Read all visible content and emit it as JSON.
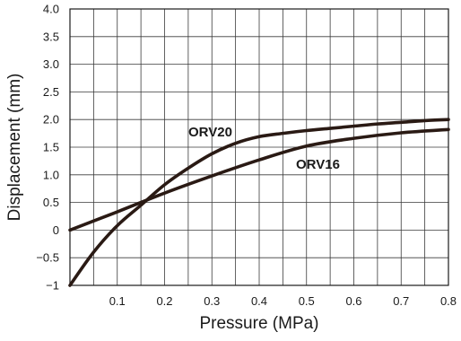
{
  "chart_data": {
    "type": "line",
    "title": "",
    "xlabel": "Pressure (MPa)",
    "ylabel": "Displacement (mm)",
    "xlim": [
      0,
      0.8
    ],
    "ylim": [
      -1,
      4
    ],
    "grid": true,
    "x_ticks": [
      "0.1",
      "0.2",
      "0.3",
      "0.4",
      "0.5",
      "0.6",
      "0.7",
      "0.8"
    ],
    "y_ticks": [
      "4.0",
      "3.5",
      "3.0",
      "2.5",
      "2.0",
      "1.5",
      "1.0",
      "0.5",
      "0",
      "−0.5",
      "−1"
    ],
    "line_color": "#2a1a14",
    "series": [
      {
        "name": "ORV20",
        "x": [
          0.0,
          0.05,
          0.1,
          0.15,
          0.2,
          0.25,
          0.3,
          0.35,
          0.4,
          0.45,
          0.5,
          0.55,
          0.6,
          0.65,
          0.7,
          0.75,
          0.8
        ],
        "y": [
          -1.0,
          -0.4,
          0.08,
          0.45,
          0.82,
          1.12,
          1.38,
          1.57,
          1.69,
          1.75,
          1.8,
          1.84,
          1.88,
          1.92,
          1.95,
          1.98,
          2.0
        ]
      },
      {
        "name": "ORV16",
        "x": [
          0.0,
          0.1,
          0.2,
          0.3,
          0.4,
          0.5,
          0.6,
          0.7,
          0.8
        ],
        "y": [
          0.0,
          0.33,
          0.67,
          0.98,
          1.27,
          1.52,
          1.66,
          1.76,
          1.82
        ]
      }
    ]
  }
}
